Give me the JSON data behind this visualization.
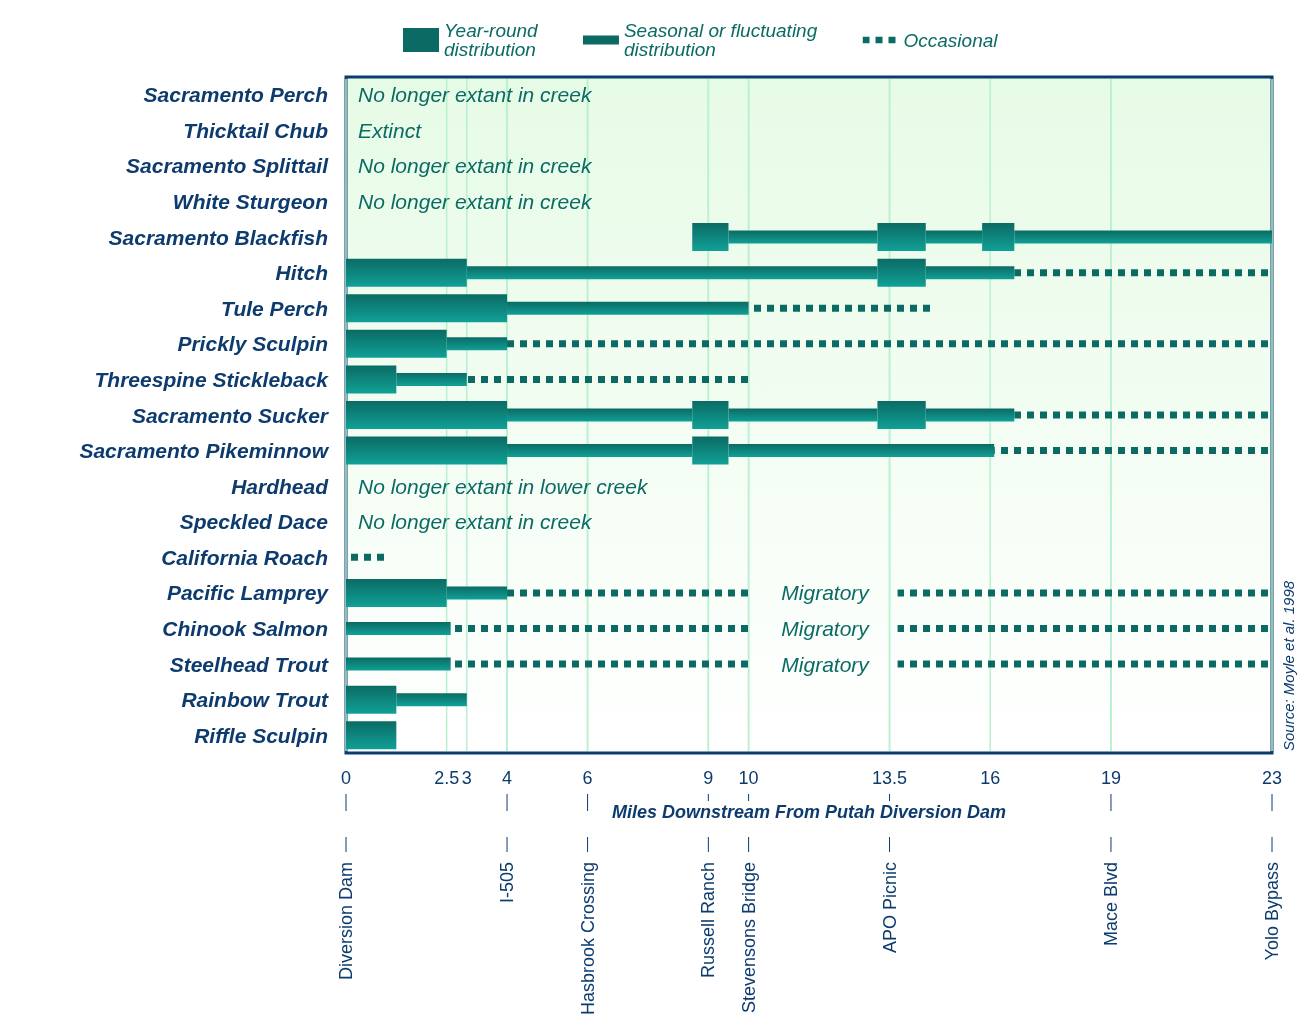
{
  "chart_data": {
    "type": "bar",
    "orientation": "horizontal",
    "categories": [
      "Sacramento Perch",
      "Thicktail Chub",
      "Sacramento Splittail",
      "White Sturgeon",
      "Sacramento Blackfish",
      "Hitch",
      "Tule Perch",
      "Prickly Sculpin",
      "Threespine Stickleback",
      "Sacramento Sucker",
      "Sacramento Pikeminnow",
      "Hardhead",
      "Speckled Dace",
      "California Roach",
      "Pacific Lamprey",
      "Chinook Salmon",
      "Steelhead Trout",
      "Rainbow Trout",
      "Riffle Sculpin"
    ],
    "xlabel": "Miles Downstream From Putah Diversion Dam",
    "xlim": [
      0,
      23
    ],
    "xticks": [
      0,
      2.5,
      3,
      4,
      6,
      9,
      10,
      13.5,
      16,
      19,
      23
    ],
    "ref_lines": [
      {
        "axis": "x",
        "value": 0,
        "label": "Diversion Dam"
      },
      {
        "axis": "x",
        "value": 4,
        "label": "I-505"
      },
      {
        "axis": "x",
        "value": 6,
        "label": "Hasbrook Crossing"
      },
      {
        "axis": "x",
        "value": 9,
        "label": "Russell Ranch"
      },
      {
        "axis": "x",
        "value": 10,
        "label": "Stevensons Bridge"
      },
      {
        "axis": "x",
        "value": 13.5,
        "label": "APO Picnic"
      },
      {
        "axis": "x",
        "value": 19,
        "label": "Mace Blvd"
      },
      {
        "axis": "x",
        "value": 23,
        "label": "Yolo Bypass"
      }
    ],
    "grid": "x",
    "legend": "top",
    "series": [
      {
        "name": "Year-round distribution",
        "marker": "square",
        "color": "#0b6b64",
        "base": [
          null,
          null,
          null,
          null,
          8.6,
          0,
          0,
          0,
          0,
          0,
          0,
          null,
          null,
          null,
          0,
          null,
          null,
          0,
          0
        ],
        "values": [
          null,
          null,
          null,
          null,
          0.9,
          3,
          4,
          2.5,
          1.25,
          4,
          4,
          null,
          null,
          null,
          2.5,
          null,
          null,
          1.25,
          1.25
        ]
      },
      {
        "marker": "square",
        "color": "#0b6b64",
        "base": [
          null,
          null,
          null,
          null,
          13.2,
          13.2,
          null,
          null,
          null,
          8.6,
          8.6,
          null,
          null,
          null,
          null,
          null,
          null,
          null,
          null
        ],
        "values": [
          null,
          null,
          null,
          null,
          1.2,
          1.2,
          null,
          null,
          null,
          0.9,
          0.9,
          null,
          null,
          null,
          null,
          null,
          null,
          null,
          null
        ]
      },
      {
        "marker": "square",
        "color": "#0b6b64",
        "base": [
          null,
          null,
          null,
          null,
          15.8,
          null,
          null,
          null,
          null,
          13.2,
          null,
          null,
          null,
          null,
          null,
          null,
          null,
          null,
          null
        ],
        "values": [
          null,
          null,
          null,
          null,
          0.8,
          null,
          null,
          null,
          null,
          1.2,
          null,
          null,
          null,
          null,
          null,
          null,
          null,
          null,
          null
        ]
      },
      {
        "name": "Seasonal or fluctuating distribution",
        "color": "#0b6b64",
        "base": [
          null,
          null,
          null,
          null,
          9.5,
          3,
          4,
          2.5,
          1.25,
          4,
          4,
          null,
          null,
          null,
          2.5,
          0,
          0,
          1.25,
          null
        ],
        "values": [
          null,
          null,
          null,
          null,
          3.7,
          10.2,
          6,
          1.5,
          1.75,
          4.6,
          4.6,
          null,
          null,
          null,
          1.5,
          2.6,
          2.6,
          1.75,
          null
        ]
      },
      {
        "color": "#0b6b64",
        "base": [
          null,
          null,
          null,
          null,
          14.4,
          14.4,
          null,
          null,
          null,
          9.5,
          9.5,
          null,
          null,
          null,
          null,
          null,
          null,
          null,
          null
        ],
        "values": [
          null,
          null,
          null,
          null,
          1.4,
          2.2,
          null,
          null,
          null,
          3.7,
          6.6,
          null,
          null,
          null,
          null,
          null,
          null,
          null,
          null
        ]
      },
      {
        "color": "#0b6b64",
        "base": [
          null,
          null,
          null,
          null,
          16.6,
          null,
          null,
          null,
          null,
          14.4,
          null,
          null,
          null,
          null,
          null,
          null,
          null,
          null,
          null
        ],
        "values": [
          null,
          null,
          null,
          null,
          6.4,
          null,
          null,
          null,
          null,
          2.2,
          null,
          null,
          null,
          null,
          null,
          null,
          null,
          null,
          null
        ]
      },
      {
        "name": "Occasional",
        "line_style": "dotted",
        "color": "#0b6b64",
        "base": [
          null,
          null,
          null,
          null,
          null,
          16.6,
          10,
          4,
          3,
          16.6,
          16.1,
          null,
          null,
          0,
          4,
          2.6,
          2.6,
          null,
          null
        ],
        "values": [
          null,
          null,
          null,
          null,
          null,
          6.4,
          4.6,
          19,
          7,
          6.4,
          6.9,
          null,
          null,
          1,
          6.1,
          7.5,
          7.5,
          null,
          null
        ]
      },
      {
        "line_style": "dotted",
        "color": "#0b6b64",
        "base": [
          null,
          null,
          null,
          null,
          null,
          null,
          null,
          null,
          null,
          null,
          null,
          null,
          null,
          null,
          13.7,
          13.7,
          13.7,
          null,
          null
        ],
        "values": [
          null,
          null,
          null,
          null,
          null,
          null,
          null,
          null,
          null,
          null,
          null,
          null,
          null,
          null,
          9.3,
          9.3,
          9.3,
          null,
          null
        ]
      }
    ],
    "annotations": [
      "No longer extant in creek",
      "Extinct",
      "No longer extant in creek",
      "No longer extant in creek",
      "No longer extant in lower creek",
      "No longer extant in creek",
      "Migratory",
      "Migratory",
      "Migratory",
      "Source: Moyle et al. 1998"
    ]
  }
}
